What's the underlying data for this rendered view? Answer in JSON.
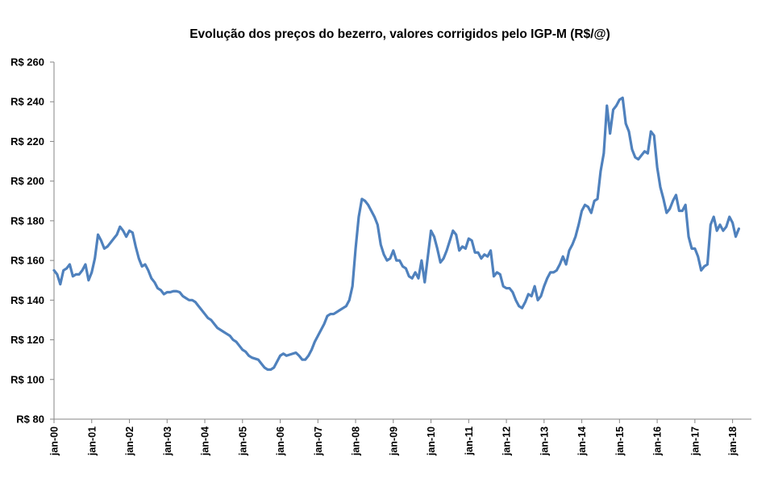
{
  "chart_data": {
    "type": "line",
    "title": "Evolução dos preços do bezerro, valores corrigidos pelo IGP-M  (R$/@)",
    "xlabel": "",
    "ylabel": "",
    "ylim": [
      80,
      260
    ],
    "y_ticks": [
      {
        "value": 80,
        "label": "R$ 80"
      },
      {
        "value": 100,
        "label": "R$ 100"
      },
      {
        "value": 120,
        "label": "R$ 120"
      },
      {
        "value": 140,
        "label": "R$ 140"
      },
      {
        "value": 160,
        "label": "R$ 160"
      },
      {
        "value": 180,
        "label": "R$ 180"
      },
      {
        "value": 200,
        "label": "R$ 200"
      },
      {
        "value": 220,
        "label": "R$ 220"
      },
      {
        "value": 240,
        "label": "R$ 240"
      },
      {
        "value": 260,
        "label": "R$ 260"
      }
    ],
    "x_ticks": [
      "jan-00",
      "jan-01",
      "jan-02",
      "jan-03",
      "jan-04",
      "jan-05",
      "jan-06",
      "jan-07",
      "jan-08",
      "jan-09",
      "jan-10",
      "jan-11",
      "jan-12",
      "jan-13",
      "jan-14",
      "jan-15",
      "jan-16",
      "jan-17",
      "jan-18"
    ],
    "x_start": "jan-00",
    "x_end": "jul-18",
    "grid": false,
    "legend": "none",
    "series": [
      {
        "color": "#4f81bd",
        "points": [
          [
            "jan-00",
            155
          ],
          [
            "fev-00",
            153
          ],
          [
            "mar-00",
            148
          ],
          [
            "abr-00",
            155
          ],
          [
            "mai-00",
            156
          ],
          [
            "jun-00",
            158
          ],
          [
            "jul-00",
            152
          ],
          [
            "ago-00",
            153
          ],
          [
            "set-00",
            153
          ],
          [
            "out-00",
            155
          ],
          [
            "nov-00",
            158
          ],
          [
            "dez-00",
            150
          ],
          [
            "jan-01",
            154
          ],
          [
            "fev-01",
            161
          ],
          [
            "mar-01",
            173
          ],
          [
            "abr-01",
            170
          ],
          [
            "mai-01",
            166
          ],
          [
            "jun-01",
            167
          ],
          [
            "jul-01",
            169
          ],
          [
            "ago-01",
            171
          ],
          [
            "set-01",
            173
          ],
          [
            "out-01",
            177
          ],
          [
            "nov-01",
            175
          ],
          [
            "dez-01",
            172
          ],
          [
            "jan-02",
            175
          ],
          [
            "fev-02",
            174
          ],
          [
            "mar-02",
            167
          ],
          [
            "abr-02",
            161
          ],
          [
            "mai-02",
            157
          ],
          [
            "jun-02",
            158
          ],
          [
            "jul-02",
            155
          ],
          [
            "ago-02",
            151
          ],
          [
            "set-02",
            149
          ],
          [
            "out-02",
            146
          ],
          [
            "nov-02",
            145
          ],
          [
            "dez-02",
            143
          ],
          [
            "jan-03",
            144
          ],
          [
            "fev-03",
            144
          ],
          [
            "mar-03",
            144.5
          ],
          [
            "abr-03",
            144.5
          ],
          [
            "mai-03",
            144
          ],
          [
            "jun-03",
            142
          ],
          [
            "jul-03",
            141
          ],
          [
            "ago-03",
            140
          ],
          [
            "set-03",
            140
          ],
          [
            "out-03",
            139
          ],
          [
            "nov-03",
            137
          ],
          [
            "dez-03",
            135
          ],
          [
            "jan-04",
            133
          ],
          [
            "fev-04",
            131
          ],
          [
            "mar-04",
            130
          ],
          [
            "abr-04",
            128
          ],
          [
            "mai-04",
            126
          ],
          [
            "jun-04",
            125
          ],
          [
            "jul-04",
            124
          ],
          [
            "ago-04",
            123
          ],
          [
            "set-04",
            122
          ],
          [
            "out-04",
            120
          ],
          [
            "nov-04",
            119
          ],
          [
            "dez-04",
            117
          ],
          [
            "jan-05",
            115
          ],
          [
            "fev-05",
            114
          ],
          [
            "mar-05",
            112
          ],
          [
            "abr-05",
            111
          ],
          [
            "mai-05",
            110.5
          ],
          [
            "jun-05",
            110
          ],
          [
            "jul-05",
            108
          ],
          [
            "ago-05",
            106
          ],
          [
            "set-05",
            105
          ],
          [
            "out-05",
            105
          ],
          [
            "nov-05",
            106
          ],
          [
            "dez-05",
            109
          ],
          [
            "jan-06",
            112
          ],
          [
            "fev-06",
            113
          ],
          [
            "mar-06",
            112
          ],
          [
            "abr-06",
            112.5
          ],
          [
            "mai-06",
            113
          ],
          [
            "jun-06",
            113.5
          ],
          [
            "jul-06",
            112
          ],
          [
            "ago-06",
            110
          ],
          [
            "set-06",
            110
          ],
          [
            "out-06",
            112
          ],
          [
            "nov-06",
            115
          ],
          [
            "dez-06",
            119
          ],
          [
            "jan-07",
            122
          ],
          [
            "fev-07",
            125
          ],
          [
            "mar-07",
            128
          ],
          [
            "abr-07",
            132
          ],
          [
            "mai-07",
            133
          ],
          [
            "jun-07",
            133
          ],
          [
            "jul-07",
            134
          ],
          [
            "ago-07",
            135
          ],
          [
            "set-07",
            136
          ],
          [
            "out-07",
            137
          ],
          [
            "nov-07",
            140
          ],
          [
            "dez-07",
            147
          ],
          [
            "jan-08",
            166
          ],
          [
            "fev-08",
            182
          ],
          [
            "mar-08",
            191
          ],
          [
            "abr-08",
            190
          ],
          [
            "mai-08",
            188
          ],
          [
            "jun-08",
            185
          ],
          [
            "jul-08",
            182
          ],
          [
            "ago-08",
            178
          ],
          [
            "set-08",
            168
          ],
          [
            "out-08",
            163
          ],
          [
            "nov-08",
            160
          ],
          [
            "dez-08",
            161
          ],
          [
            "jan-09",
            165
          ],
          [
            "fev-09",
            160
          ],
          [
            "mar-09",
            160
          ],
          [
            "abr-09",
            157
          ],
          [
            "mai-09",
            156
          ],
          [
            "jun-09",
            152
          ],
          [
            "jul-09",
            151
          ],
          [
            "ago-09",
            154
          ],
          [
            "set-09",
            151
          ],
          [
            "out-09",
            160
          ],
          [
            "nov-09",
            149
          ],
          [
            "dez-09",
            162
          ],
          [
            "jan-10",
            175
          ],
          [
            "fev-10",
            172
          ],
          [
            "mar-10",
            166
          ],
          [
            "abr-10",
            159
          ],
          [
            "mai-10",
            161
          ],
          [
            "jun-10",
            165
          ],
          [
            "jul-10",
            170
          ],
          [
            "ago-10",
            175
          ],
          [
            "set-10",
            173
          ],
          [
            "out-10",
            165
          ],
          [
            "nov-10",
            167
          ],
          [
            "dez-10",
            166
          ],
          [
            "jan-11",
            171
          ],
          [
            "fev-11",
            170
          ],
          [
            "mar-11",
            164
          ],
          [
            "abr-11",
            164
          ],
          [
            "mai-11",
            161
          ],
          [
            "jun-11",
            163
          ],
          [
            "jul-11",
            162
          ],
          [
            "ago-11",
            165
          ],
          [
            "set-11",
            152
          ],
          [
            "out-11",
            154
          ],
          [
            "nov-11",
            153
          ],
          [
            "dez-11",
            147
          ],
          [
            "jan-12",
            146
          ],
          [
            "fev-12",
            146
          ],
          [
            "mar-12",
            144
          ],
          [
            "abr-12",
            140
          ],
          [
            "mai-12",
            137
          ],
          [
            "jun-12",
            136
          ],
          [
            "jul-12",
            139
          ],
          [
            "ago-12",
            143
          ],
          [
            "set-12",
            142
          ],
          [
            "out-12",
            147
          ],
          [
            "nov-12",
            140
          ],
          [
            "dez-12",
            142
          ],
          [
            "jan-13",
            147
          ],
          [
            "fev-13",
            151
          ],
          [
            "mar-13",
            154
          ],
          [
            "abr-13",
            154
          ],
          [
            "mai-13",
            155
          ],
          [
            "jun-13",
            158
          ],
          [
            "jul-13",
            162
          ],
          [
            "ago-13",
            158
          ],
          [
            "set-13",
            165
          ],
          [
            "out-13",
            168
          ],
          [
            "nov-13",
            172
          ],
          [
            "dez-13",
            178
          ],
          [
            "jan-14",
            185
          ],
          [
            "fev-14",
            188
          ],
          [
            "mar-14",
            187
          ],
          [
            "abr-14",
            184
          ],
          [
            "mai-14",
            190
          ],
          [
            "jun-14",
            191
          ],
          [
            "jul-14",
            205
          ],
          [
            "ago-14",
            214
          ],
          [
            "set-14",
            238
          ],
          [
            "out-14",
            224
          ],
          [
            "nov-14",
            236
          ],
          [
            "dez-14",
            238
          ],
          [
            "jan-15",
            241
          ],
          [
            "fev-15",
            242
          ],
          [
            "mar-15",
            229
          ],
          [
            "abr-15",
            225
          ],
          [
            "mai-15",
            216
          ],
          [
            "jun-15",
            212
          ],
          [
            "jul-15",
            211
          ],
          [
            "ago-15",
            213
          ],
          [
            "set-15",
            215
          ],
          [
            "out-15",
            214
          ],
          [
            "nov-15",
            225
          ],
          [
            "dez-15",
            223
          ],
          [
            "jan-16",
            207
          ],
          [
            "fev-16",
            197
          ],
          [
            "mar-16",
            191
          ],
          [
            "abr-16",
            184
          ],
          [
            "mai-16",
            186
          ],
          [
            "jun-16",
            190
          ],
          [
            "jul-16",
            193
          ],
          [
            "ago-16",
            185
          ],
          [
            "set-16",
            185
          ],
          [
            "out-16",
            188
          ],
          [
            "nov-16",
            172
          ],
          [
            "dez-16",
            166
          ],
          [
            "jan-17",
            166
          ],
          [
            "fev-17",
            162
          ],
          [
            "mar-17",
            155
          ],
          [
            "abr-17",
            157
          ],
          [
            "mai-17",
            158
          ],
          [
            "jun-17",
            178
          ],
          [
            "jul-17",
            182
          ],
          [
            "ago-17",
            175
          ],
          [
            "set-17",
            178
          ],
          [
            "out-17",
            175
          ],
          [
            "nov-17",
            177
          ],
          [
            "dez-17",
            182
          ],
          [
            "jan-18",
            179
          ],
          [
            "fev-18",
            172
          ],
          [
            "mar-18",
            176
          ]
        ]
      }
    ]
  }
}
